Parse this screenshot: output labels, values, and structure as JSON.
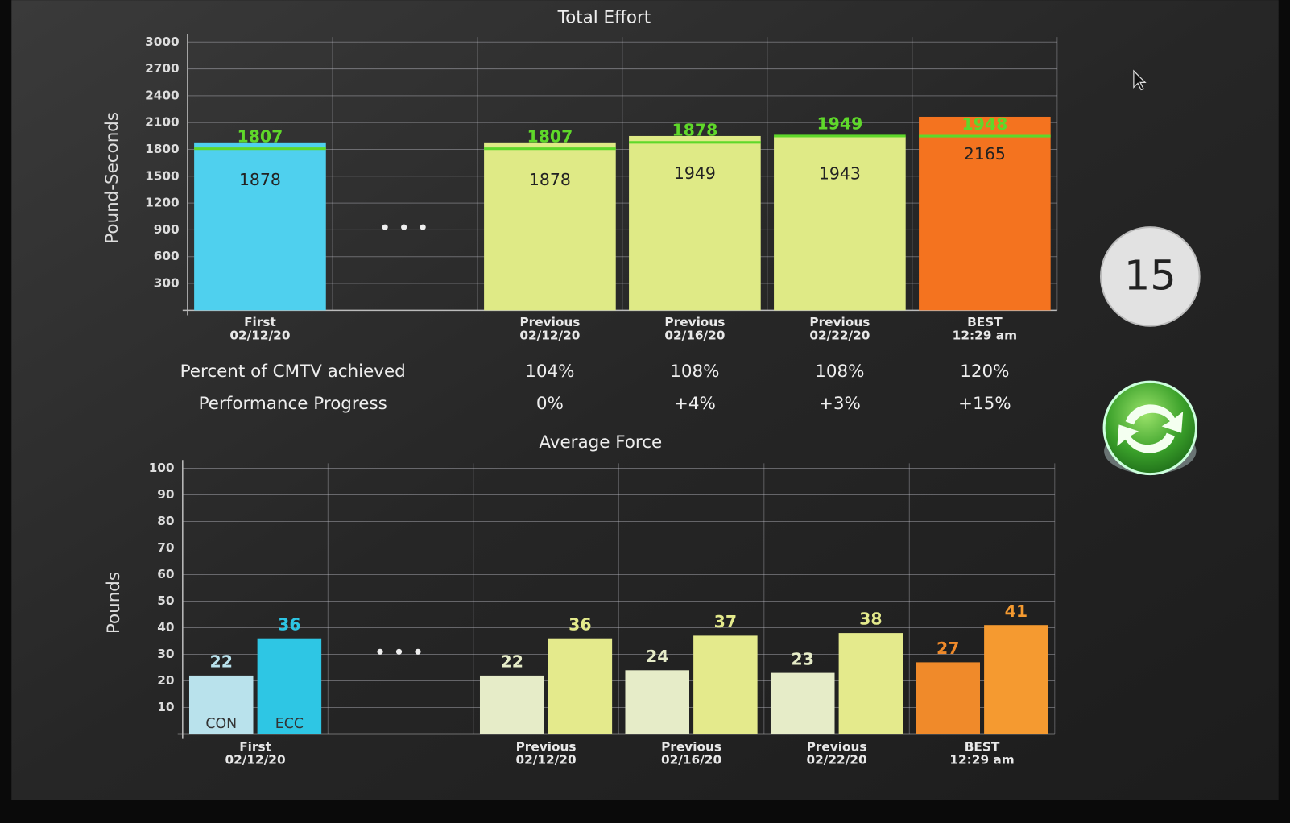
{
  "chart_data": [
    {
      "type": "bar",
      "title": "Total Effort",
      "y_label": "Pound-Seconds",
      "categories": [
        [
          "First",
          "02/12/20"
        ],
        null,
        [
          "Previous",
          "02/12/20"
        ],
        [
          "Previous",
          "02/16/20"
        ],
        [
          "Previous",
          "02/22/20"
        ],
        [
          "BEST",
          "12:29 am"
        ]
      ],
      "values": [
        1878,
        null,
        1878,
        1949,
        1943,
        2165
      ],
      "targets": [
        1807,
        null,
        1807,
        1878,
        1949,
        1948
      ],
      "colors": [
        "#4fd0ee",
        null,
        "#dfea86",
        "#dfea86",
        "#dfea86",
        "#f4731f"
      ],
      "target_color": "#5fd82a",
      "ylim": [
        0,
        3000
      ],
      "yticks": [
        300,
        600,
        900,
        1200,
        1500,
        1800,
        2100,
        2400,
        2700,
        3000
      ],
      "grid": true
    },
    {
      "type": "bar",
      "title": "Average Force",
      "y_label": "Pounds",
      "categories": [
        [
          "First",
          "02/12/20"
        ],
        null,
        [
          "Previous",
          "02/12/20"
        ],
        [
          "Previous",
          "02/16/20"
        ],
        [
          "Previous",
          "02/22/20"
        ],
        [
          "BEST",
          "12:29 am"
        ]
      ],
      "series": [
        {
          "name": "CON",
          "values": [
            22,
            null,
            22,
            24,
            23,
            27
          ],
          "colors": [
            "#b9e2ec",
            null,
            "#e6ecc8",
            "#e6ecc8",
            "#e6ecc8",
            "#f08a2a"
          ]
        },
        {
          "name": "ECC",
          "values": [
            36,
            null,
            36,
            37,
            38,
            41
          ],
          "colors": [
            "#2ec6e4",
            null,
            "#e4ea8c",
            "#e4ea8c",
            "#e4ea8c",
            "#f59a30"
          ]
        }
      ],
      "ylim": [
        0,
        100
      ],
      "yticks": [
        10,
        20,
        30,
        40,
        50,
        60,
        70,
        80,
        90,
        100
      ],
      "grid": true
    }
  ],
  "table": {
    "rows": [
      {
        "label": "Percent of CMTV achieved",
        "cells": [
          "104%",
          "108%",
          "108%",
          "120%"
        ]
      },
      {
        "label": "Performance Progress",
        "cells": [
          "0%",
          "+4%",
          "+3%",
          "+15%"
        ]
      }
    ]
  },
  "badge": 15
}
